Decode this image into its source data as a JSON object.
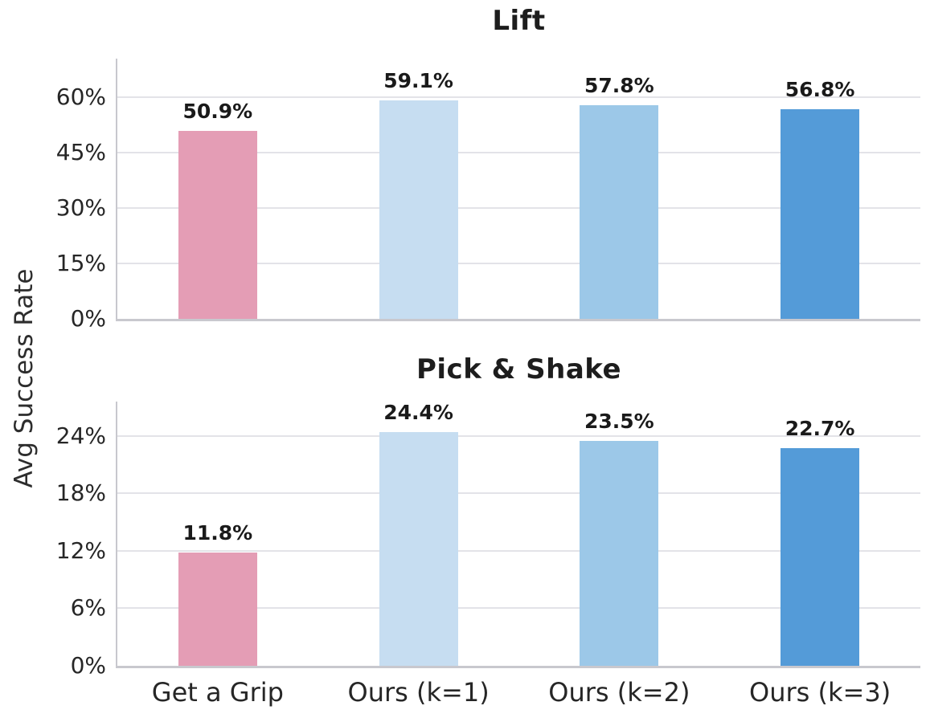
{
  "figure": {
    "ylabel": "Avg Success Rate",
    "background_color": "#ffffff",
    "grid_color": "#e3e3e8",
    "spine_color": "#c8c8ce",
    "text_color": "#1d1d1d"
  },
  "chart_data": [
    {
      "type": "bar",
      "title": "Lift",
      "categories": [
        "Get a Grip",
        "Ours (k=1)",
        "Ours (k=2)",
        "Ours (k=3)"
      ],
      "values": [
        50.9,
        59.1,
        57.8,
        56.8
      ],
      "value_labels": [
        "50.9%",
        "59.1%",
        "57.8%",
        "56.8%"
      ],
      "bar_colors": [
        "#e49db5",
        "#c6ddf1",
        "#9cc8e8",
        "#549bd8"
      ],
      "ytick_labels": [
        "0%",
        "15%",
        "30%",
        "45%",
        "60%"
      ],
      "ytick_values": [
        0,
        15,
        30,
        45,
        60
      ],
      "ylim": [
        0,
        70.5
      ],
      "ylabel": "Avg Success Rate",
      "xlabel": "",
      "grid": true,
      "legend": "none",
      "show_xtick_labels": false
    },
    {
      "type": "bar",
      "title": "Pick & Shake",
      "categories": [
        "Get a Grip",
        "Ours (k=1)",
        "Ours (k=2)",
        "Ours (k=3)"
      ],
      "values": [
        11.8,
        24.4,
        23.5,
        22.7
      ],
      "value_labels": [
        "11.8%",
        "24.4%",
        "23.5%",
        "22.7%"
      ],
      "bar_colors": [
        "#e49db5",
        "#c6ddf1",
        "#9cc8e8",
        "#549bd8"
      ],
      "ytick_labels": [
        "0%",
        "6%",
        "12%",
        "18%",
        "24%"
      ],
      "ytick_values": [
        0,
        6,
        12,
        18,
        24
      ],
      "ylim": [
        0,
        27.6
      ],
      "ylabel": "Avg Success Rate",
      "xlabel": "",
      "grid": true,
      "legend": "none",
      "show_xtick_labels": true
    }
  ]
}
